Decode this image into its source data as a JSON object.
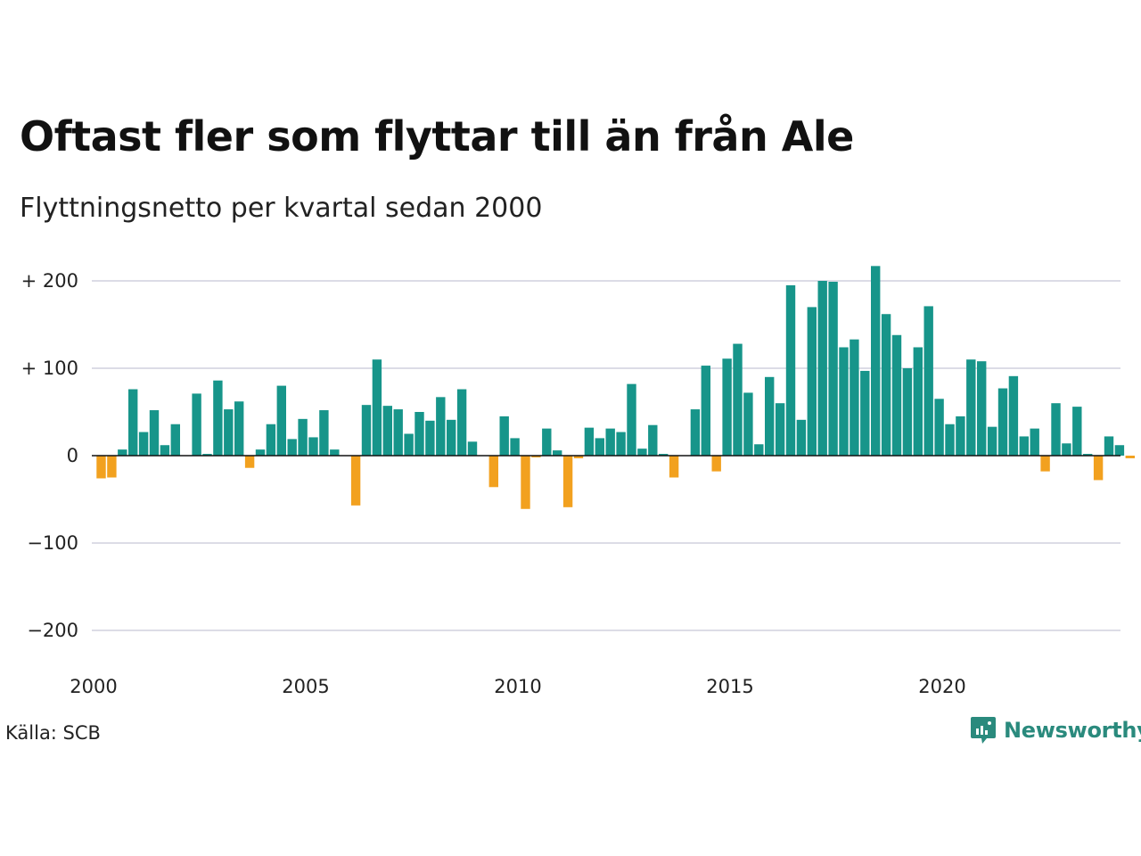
{
  "header": {
    "title": "Oftast fler som flyttar till än från Ale",
    "subtitle": "Flyttningsnetto per kvartal sedan 2000"
  },
  "footer": {
    "source": "Källa: SCB",
    "brand": "Newsworthy"
  },
  "colors": {
    "positive": "#17958a",
    "negative": "#f2a11f",
    "grid": "#dcdce6",
    "brand": "#2a8a7d"
  },
  "icons": {
    "brand_logo": "newsworthy-logo-icon"
  },
  "chart_data": {
    "type": "bar",
    "ylim": [
      -200,
      200
    ],
    "yticks": [
      200,
      100,
      0,
      -100,
      -200
    ],
    "ytick_labels": [
      "+ 200",
      "+ 100",
      "0",
      "−100",
      "−200"
    ],
    "xtick_labels": [
      "2000",
      "2005",
      "2010",
      "2015",
      "2020"
    ],
    "grid": true,
    "categories": [
      "2000K1",
      "2000K2",
      "2000K3",
      "2000K4",
      "2001K1",
      "2001K2",
      "2001K3",
      "2001K4",
      "2002K1",
      "2002K2",
      "2002K3",
      "2002K4",
      "2003K1",
      "2003K2",
      "2003K3",
      "2003K4",
      "2004K1",
      "2004K2",
      "2004K3",
      "2004K4",
      "2005K1",
      "2005K2",
      "2005K3",
      "2005K4",
      "2006K1",
      "2006K2",
      "2006K3",
      "2006K4",
      "2007K1",
      "2007K2",
      "2007K3",
      "2007K4",
      "2008K1",
      "2008K2",
      "2008K3",
      "2008K4",
      "2009K1",
      "2009K2",
      "2009K3",
      "2009K4",
      "2010K1",
      "2010K2",
      "2010K3",
      "2010K4",
      "2011K1",
      "2011K2",
      "2011K3",
      "2011K4",
      "2012K1",
      "2012K2",
      "2012K3",
      "2012K4",
      "2013K1",
      "2013K2",
      "2013K3",
      "2013K4",
      "2014K1",
      "2014K2",
      "2014K3",
      "2014K4",
      "2015K1",
      "2015K2",
      "2015K3",
      "2015K4",
      "2016K1",
      "2016K2",
      "2016K3",
      "2016K4",
      "2017K1",
      "2017K2",
      "2017K3",
      "2017K4",
      "2018K1",
      "2018K2",
      "2018K3",
      "2018K4",
      "2019K1",
      "2019K2",
      "2019K3",
      "2019K4",
      "2020K1",
      "2020K2",
      "2020K3",
      "2020K4",
      "2021K1",
      "2021K2",
      "2021K3",
      "2021K4",
      "2022K1",
      "2022K2",
      "2022K3",
      "2022K4",
      "2023K1",
      "2023K2",
      "2023K3",
      "2023K4",
      "2024K1",
      "2024K2"
    ],
    "values": [
      -26,
      -25,
      7,
      76,
      27,
      52,
      12,
      36,
      0,
      71,
      2,
      86,
      53,
      62,
      -14,
      7,
      36,
      80,
      19,
      42,
      21,
      52,
      7,
      0,
      -57,
      58,
      110,
      57,
      53,
      25,
      50,
      40,
      67,
      41,
      76,
      16,
      0,
      -36,
      45,
      20,
      -61,
      -2,
      31,
      6,
      -59,
      -3,
      32,
      20,
      31,
      27,
      82,
      8,
      35,
      2,
      -25,
      0,
      53,
      103,
      -18,
      111,
      128,
      72,
      13,
      90,
      60,
      195,
      41,
      170,
      200,
      199,
      124,
      133,
      97,
      217,
      162,
      138,
      100,
      124,
      171,
      65,
      36,
      45,
      110,
      108,
      33,
      77,
      91,
      22,
      31,
      -18,
      60,
      14,
      56,
      2,
      -28,
      22,
      12,
      -3
    ]
  }
}
